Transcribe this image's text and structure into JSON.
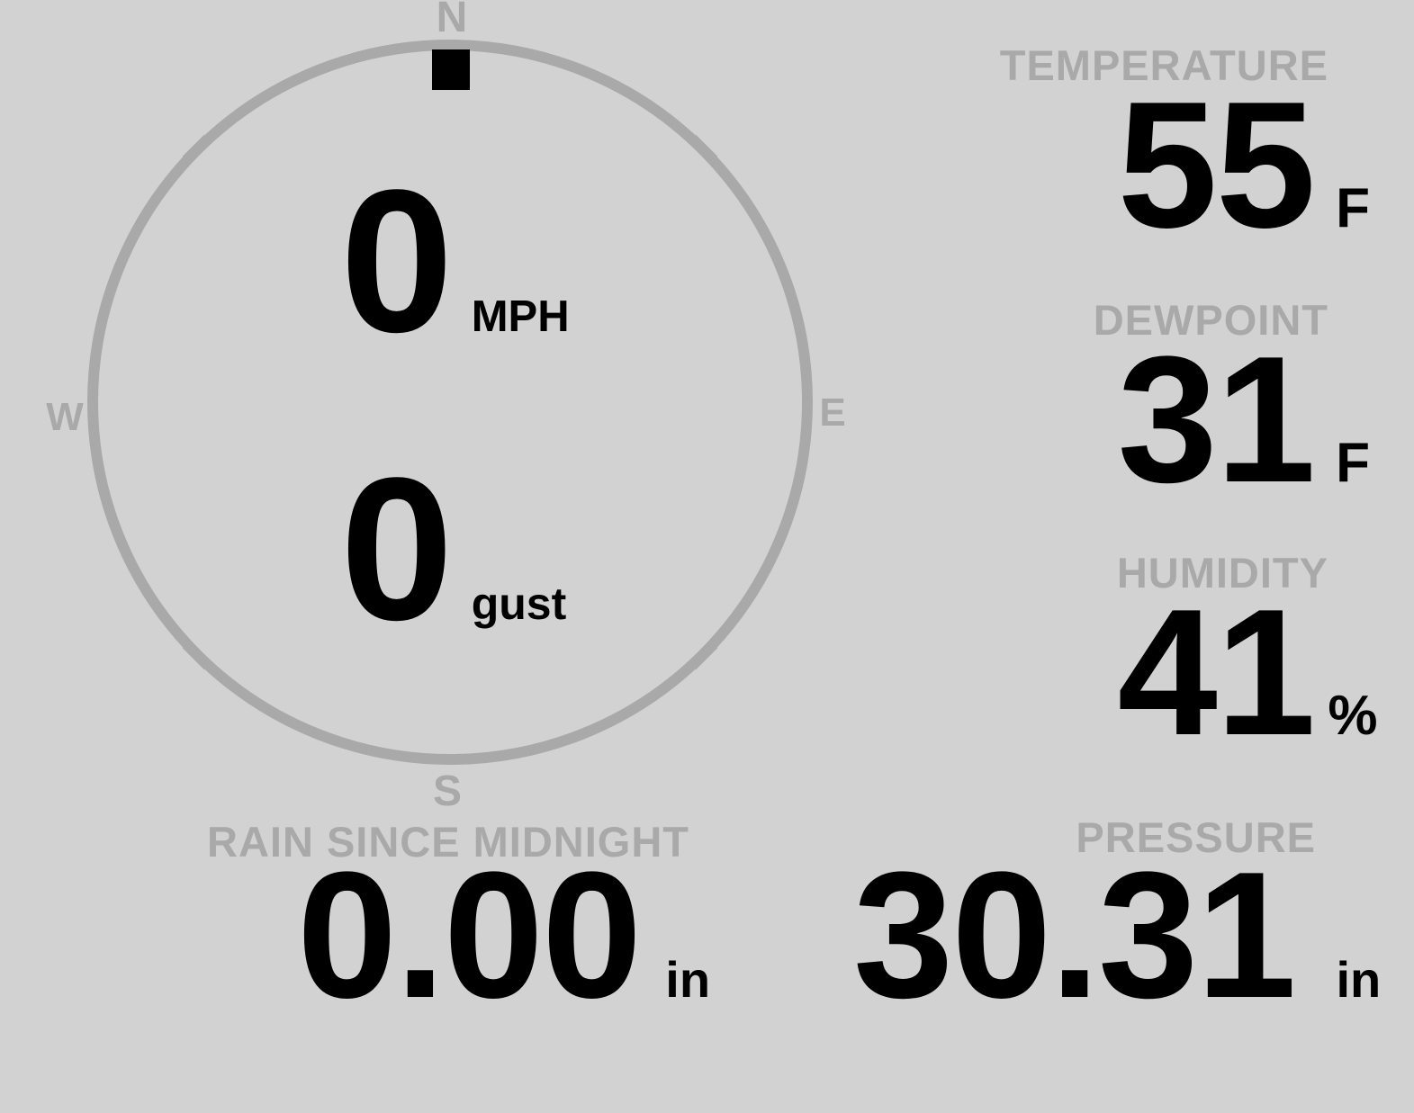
{
  "colors": {
    "background": "#d2d2d2",
    "muted": "#a9a9a9",
    "ink": "#000000"
  },
  "compass": {
    "cardinals": {
      "north": "N",
      "east": "E",
      "south": "S",
      "west": "W"
    },
    "direction": "N",
    "wind": {
      "value": "0",
      "unit": "MPH"
    },
    "gust": {
      "value": "0",
      "unit": "gust"
    }
  },
  "stats": [
    {
      "id": "temperature",
      "label": "TEMPERATURE",
      "value": "55",
      "unit": "F"
    },
    {
      "id": "dewpoint",
      "label": "DEWPOINT",
      "value": "31",
      "unit": "F"
    },
    {
      "id": "humidity",
      "label": "HUMIDITY",
      "value": "41",
      "unit": "%"
    }
  ],
  "bottom": [
    {
      "id": "rain",
      "label": "RAIN SINCE MIDNIGHT",
      "value": "0.00",
      "unit": "in"
    },
    {
      "id": "pressure",
      "label": "PRESSURE",
      "value": "30.31",
      "unit": "in"
    }
  ]
}
